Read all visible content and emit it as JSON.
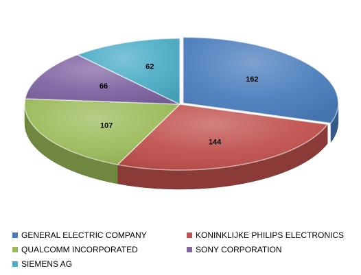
{
  "chart_data": {
    "type": "pie",
    "title": "",
    "style": "3d-pie",
    "legend_position": "bottom",
    "slices": [
      {
        "label": "GENERAL ELECTRIC COMPANY",
        "value": 162,
        "color": "#4a7dbd"
      },
      {
        "label": "KONINKLIJKE PHILIPS ELECTRONICS",
        "value": 144,
        "color": "#c0504d"
      },
      {
        "label": "QUALCOMM INCORPORATED",
        "value": 107,
        "color": "#9bbb59"
      },
      {
        "label": "SONY CORPORATION",
        "value": 66,
        "color": "#8064a2"
      },
      {
        "label": "SIEMENS AG",
        "value": 62,
        "color": "#4bacc6"
      }
    ]
  }
}
